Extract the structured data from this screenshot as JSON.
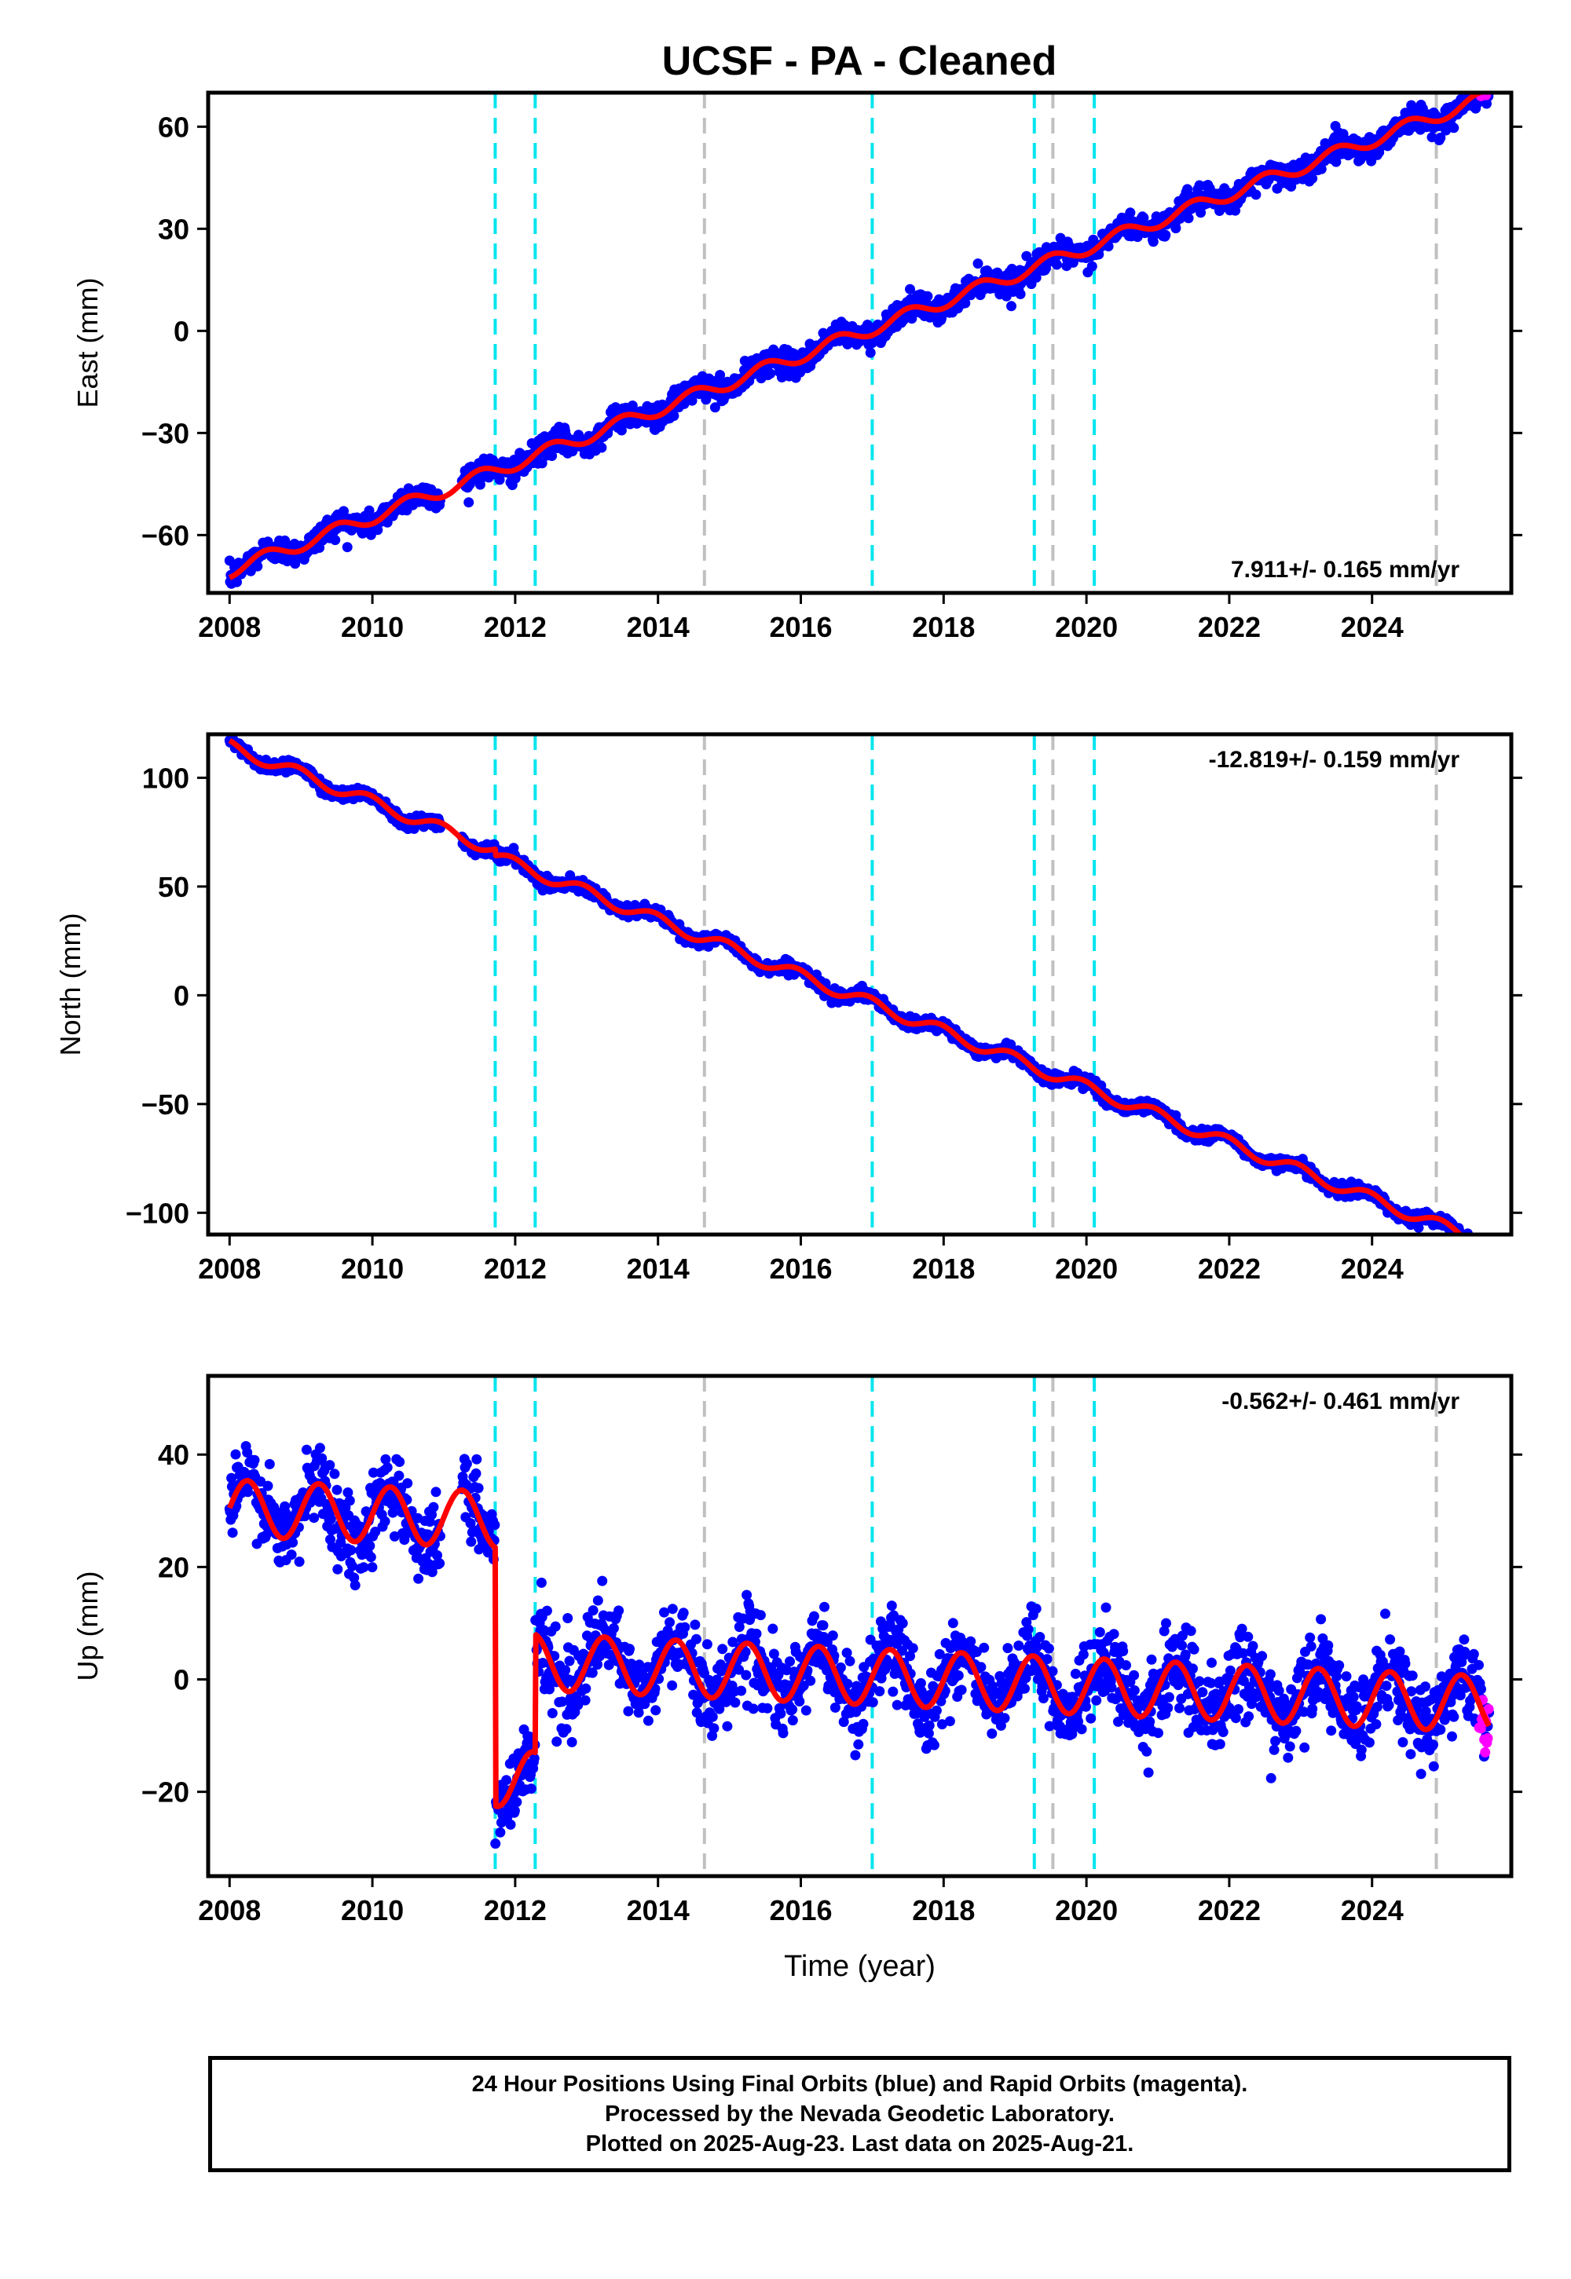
{
  "title": "UCSF  - PA - Cleaned",
  "footer": {
    "line1": "24 Hour Positions Using Final Orbits (blue) and Rapid Orbits (magenta).",
    "line2": "Processed by the Nevada Geodetic Laboratory.",
    "line3": "Plotted on 2025-Aug-23. Last data on 2025-Aug-21."
  },
  "colors": {
    "final_orbits": "#0000ff",
    "rapid_orbits": "#ff00ff",
    "model": "#ff0000",
    "equipment_change": "#00e5ee",
    "earthquake": "#c0c0c0"
  },
  "chart_data": [
    {
      "type": "scatter",
      "ylabel": "East (mm)",
      "xlabel": "",
      "xlim": [
        2007.7,
        2025.95
      ],
      "ylim": [
        -77,
        70
      ],
      "xticks": [
        2008,
        2010,
        2012,
        2014,
        2016,
        2018,
        2020,
        2022,
        2024
      ],
      "yticks": [
        -60,
        -30,
        0,
        30,
        60
      ],
      "grid": false,
      "rate_label": "7.911+/- 0.165 mm/yr",
      "rate_label_position": "bottom-right",
      "velocity": 7.911,
      "value_at_2008": -70.5,
      "annual_amplitude": 2.0,
      "annual_phase": 0.75,
      "offsets": [],
      "noise": 1.8,
      "vlines_cyan": [
        2011.72,
        2012.28,
        2017.0,
        2019.27,
        2020.11
      ],
      "vlines_gray": [
        2014.65,
        2019.53,
        2024.9
      ]
    },
    {
      "type": "scatter",
      "ylabel": "North (mm)",
      "xlabel": "",
      "xlim": [
        2007.7,
        2025.95
      ],
      "ylim": [
        -110,
        120
      ],
      "xticks": [
        2008,
        2010,
        2012,
        2014,
        2016,
        2018,
        2020,
        2022,
        2024
      ],
      "yticks": [
        -100,
        -50,
        0,
        50,
        100
      ],
      "grid": false,
      "rate_label": "-12.819+/- 0.159 mm/yr",
      "rate_label_position": "top-right",
      "velocity": -12.819,
      "value_at_2008": 114.5,
      "annual_amplitude": 2.8,
      "annual_phase": 0.3,
      "offsets": [
        {
          "t": 2011.72,
          "dy": -3.0
        }
      ],
      "noise": 1.4,
      "vlines_cyan": [
        2011.72,
        2012.28,
        2017.0,
        2019.27,
        2020.11
      ],
      "vlines_gray": [
        2014.65,
        2019.53,
        2024.9
      ]
    },
    {
      "type": "scatter",
      "ylabel": "Up (mm)",
      "xlabel": "Time (year)",
      "xlim": [
        2007.7,
        2025.95
      ],
      "ylim": [
        -35,
        54
      ],
      "xticks": [
        2008,
        2010,
        2012,
        2014,
        2016,
        2018,
        2020,
        2022,
        2024
      ],
      "yticks": [
        -20,
        0,
        20,
        40
      ],
      "grid": false,
      "rate_label": "-0.562+/- 0.461 mm/yr",
      "rate_label_position": "top-right",
      "velocity": -0.562,
      "value_at_2008": 30.5,
      "annual_amplitude": 5.0,
      "annual_phase": 0.0,
      "offsets": [
        {
          "t": 2011.72,
          "dy": -46.0
        },
        {
          "t": 2012.28,
          "dy": 21.0
        }
      ],
      "noise": 3.6,
      "vlines_cyan": [
        2011.72,
        2012.28,
        2017.0,
        2019.27,
        2020.11
      ],
      "vlines_gray": [
        2014.65,
        2019.53,
        2024.9
      ]
    }
  ]
}
